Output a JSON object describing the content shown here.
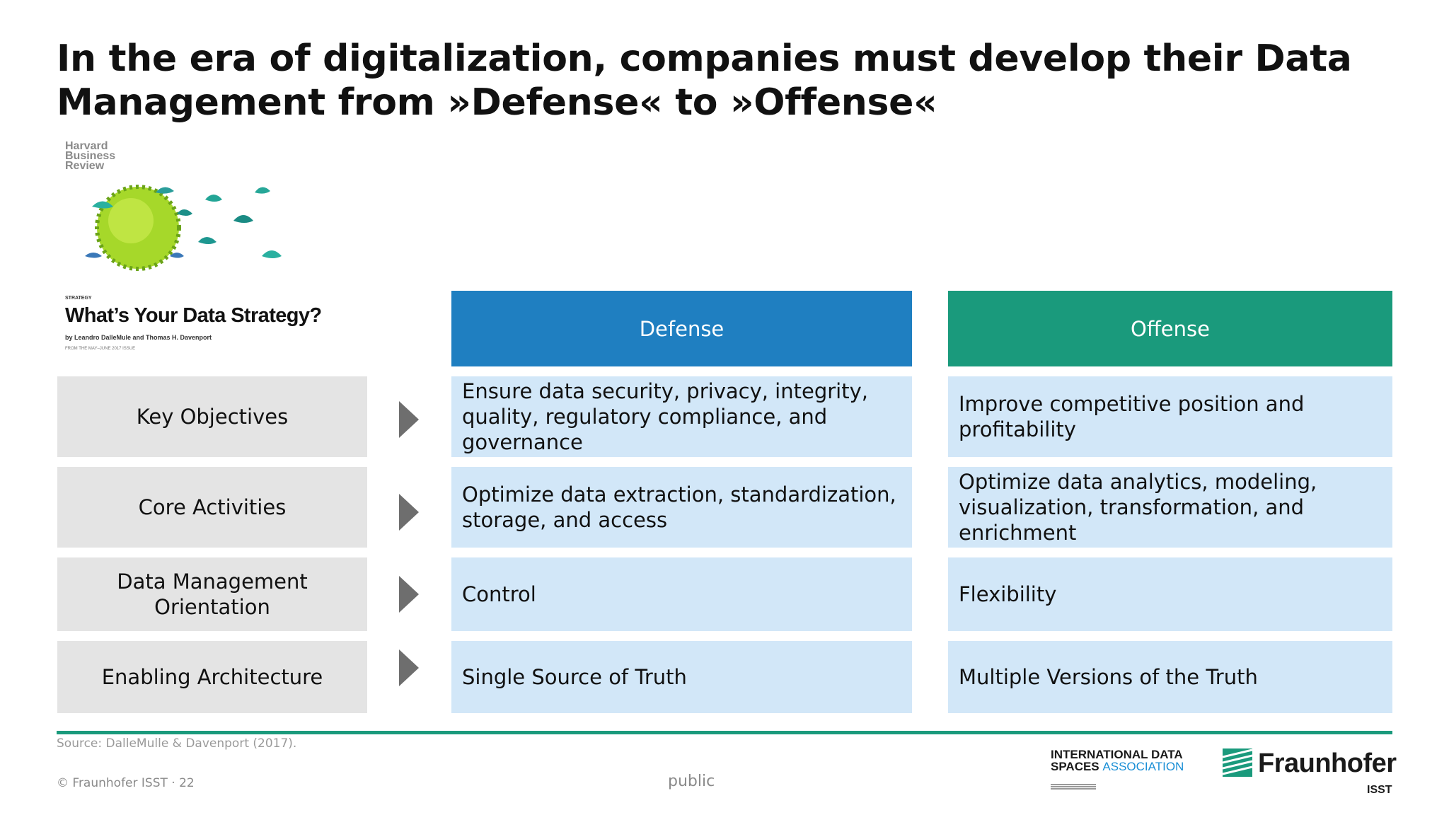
{
  "title": "In the era of digitalization, companies must develop their Data Management from »Defense« to »Offense«",
  "hbr": {
    "brand": "Harvard Business Review",
    "kicker": "STRATEGY",
    "article_title": "What’s Your Data Strategy?",
    "byline": "by Leandro DalleMule and Thomas H. Davenport",
    "from": "FROM THE MAY–JUNE 2017 ISSUE"
  },
  "columns": {
    "defense": "Defense",
    "offense": "Offense"
  },
  "rows": [
    {
      "label": "Key Objectives",
      "defense": "Ensure data security, privacy, integrity, quality, regulatory compliance, and governance",
      "offense": "Improve competitive position and profitability"
    },
    {
      "label": "Core Activities",
      "defense": "Optimize data extraction, standardization, storage, and access",
      "offense": "Optimize data analytics, modeling, visualization, transformation, and enrichment"
    },
    {
      "label": "Data Management Orientation",
      "defense": "Control",
      "offense": "Flexibility"
    },
    {
      "label": "Enabling Architecture",
      "defense": "Single Source of Truth",
      "offense": "Multiple Versions of the Truth"
    }
  ],
  "footer": {
    "source": "Source: DalleMulle & Davenport (2017).",
    "copyright": "© Fraunhofer ISST · 22",
    "classification": "public",
    "idsa_line1": "INTERNATIONAL DATA",
    "idsa_line2a": "SPACES",
    "idsa_line2b": "ASSOCIATION",
    "fraunhofer": "Fraunhofer",
    "fraunhofer_unit": "ISST"
  },
  "colors": {
    "defense_header": "#1f7fc1",
    "offense_header": "#1a9a7c",
    "cell_blue": "#d2e7f8",
    "label_gray": "#e4e4e4",
    "rule": "#1a9a7c"
  }
}
